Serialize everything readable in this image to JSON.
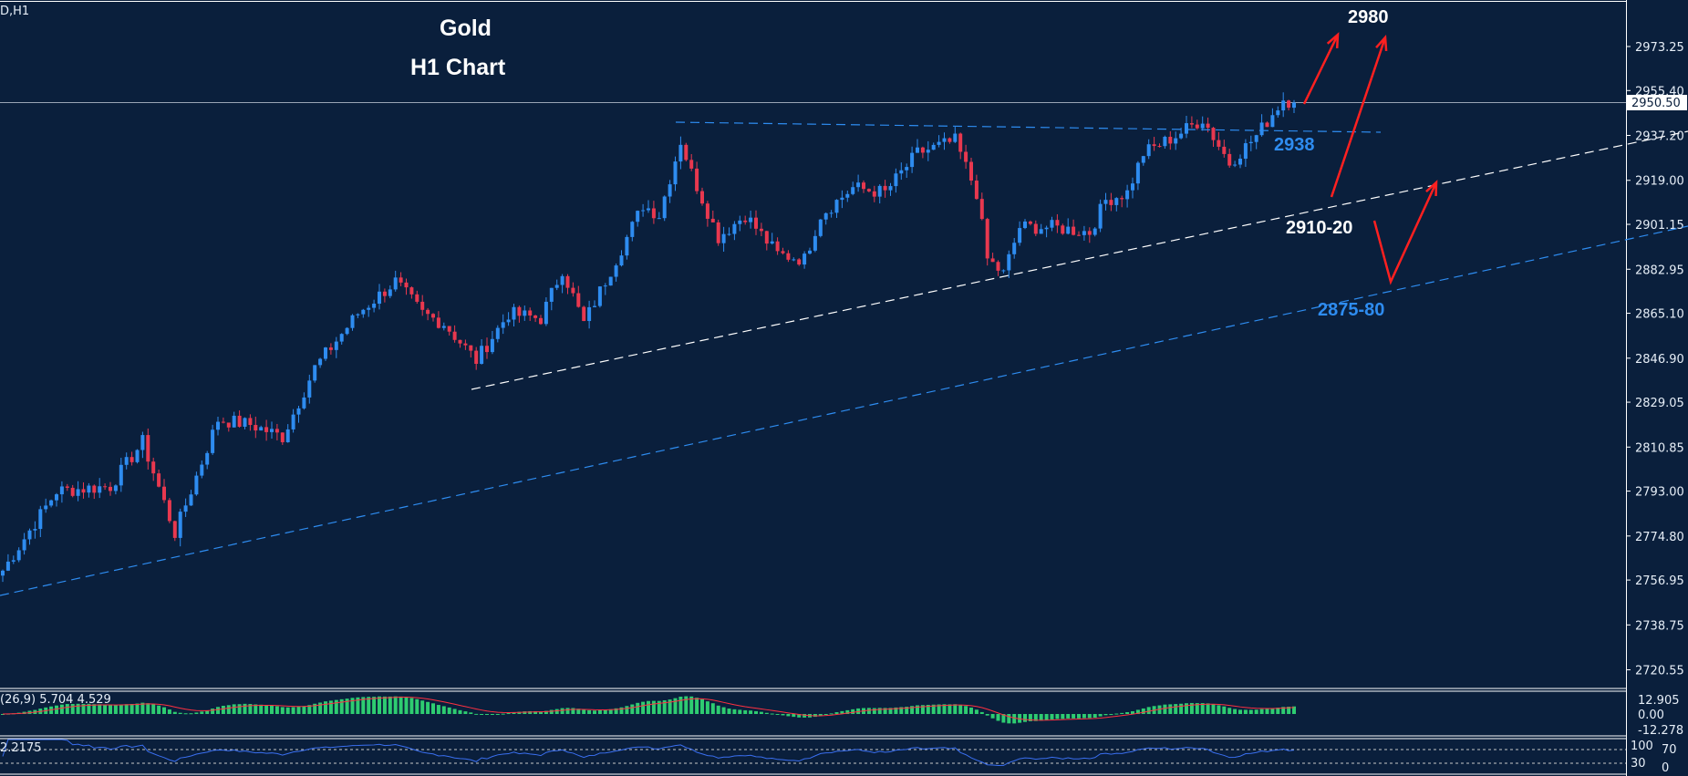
{
  "header": {
    "symbol_label": "D,H1"
  },
  "chart_data": {
    "type": "candlestick",
    "title": "Gold",
    "subtitle": "H1  Chart",
    "y_ticks": [
      "2973.25",
      "2955.40",
      "2937.20",
      "2919.00",
      "2901.15",
      "2882.95",
      "2865.10",
      "2846.90",
      "2829.05",
      "2810.85",
      "2793.00",
      "2774.80",
      "2756.95",
      "2738.75",
      "2720.55"
    ],
    "ylim": [
      2712,
      2993
    ],
    "current_price": "2950.50",
    "approx_close_path": [
      [
        0,
        2760.8
      ],
      [
        4,
        2773.8
      ],
      [
        10,
        2793
      ],
      [
        20,
        2795
      ],
      [
        26,
        2813
      ],
      [
        32,
        2776
      ],
      [
        40,
        2822
      ],
      [
        46,
        2820
      ],
      [
        52,
        2815
      ],
      [
        58,
        2843
      ],
      [
        66,
        2865
      ],
      [
        73,
        2878
      ],
      [
        78,
        2865
      ],
      [
        82,
        2861
      ],
      [
        88,
        2846
      ],
      [
        94,
        2865
      ],
      [
        100,
        2863
      ],
      [
        104,
        2883
      ],
      [
        108,
        2861
      ],
      [
        114,
        2887
      ],
      [
        119,
        2909
      ],
      [
        122,
        2905
      ],
      [
        126,
        2935
      ],
      [
        128,
        2922
      ],
      [
        133,
        2896
      ],
      [
        138,
        2905
      ],
      [
        144,
        2889
      ],
      [
        149,
        2887
      ],
      [
        152,
        2905
      ],
      [
        158,
        2916
      ],
      [
        164,
        2914
      ],
      [
        170,
        2930
      ],
      [
        177,
        2935
      ],
      [
        181,
        2914
      ],
      [
        183,
        2887
      ],
      [
        186,
        2881
      ],
      [
        189,
        2900
      ],
      [
        195,
        2900
      ],
      [
        202,
        2898
      ],
      [
        205,
        2911
      ],
      [
        209,
        2914
      ],
      [
        212,
        2930
      ],
      [
        218,
        2937
      ],
      [
        223,
        2944
      ],
      [
        228,
        2926
      ],
      [
        233,
        2937
      ],
      [
        238,
        2952
      ],
      [
        240,
        2950.5
      ]
    ],
    "colors": {
      "bull": "#2e8cf0",
      "bear": "#e8384f",
      "background": "#0a1f3c"
    },
    "annotations": [
      {
        "text": "2980",
        "color": "#ffffff"
      },
      {
        "text": "2938",
        "color": "#2e8cf0"
      },
      {
        "text": "2910-20",
        "color": "#ffffff"
      },
      {
        "text": "2875-80",
        "color": "#2e8cf0"
      }
    ],
    "lines": [
      {
        "kind": "trendline-support",
        "style": "dashed",
        "color": "#ffffff"
      },
      {
        "kind": "trendline-channel",
        "style": "dashed",
        "color": "#2e8cf0"
      },
      {
        "kind": "horizontal-resistance",
        "value": 2938,
        "style": "dashed",
        "color": "#2e8cf0"
      }
    ],
    "macd": {
      "legend": "(26,9) 5.704 4.529",
      "ticks": [
        "12.905",
        "0.00",
        "-12.278"
      ],
      "hist_color": "#2ecc71",
      "signal_color": "#ff3040"
    },
    "rsi": {
      "legend": "2.2175",
      "ticks": [
        "100",
        "70",
        "30",
        "0"
      ],
      "line_color": "#3a6ff0"
    }
  }
}
